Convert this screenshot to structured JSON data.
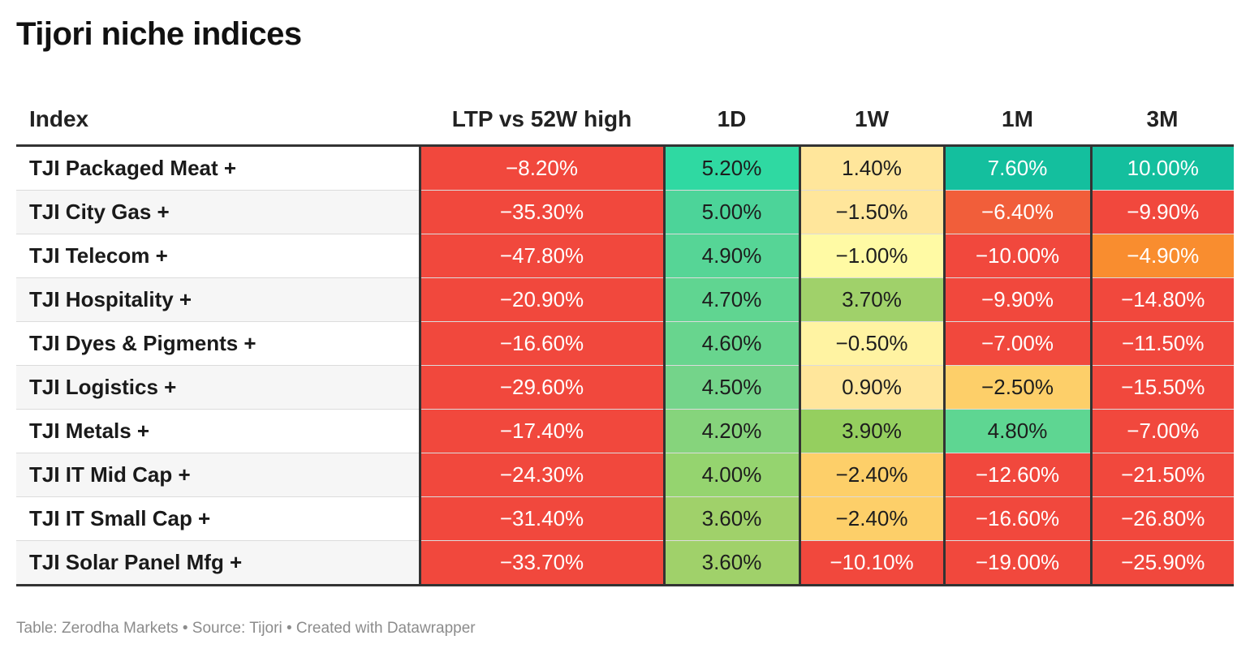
{
  "title": "Tijori niche indices",
  "footer": "Table: Zerodha Markets • Source: Tijori • Created with Datawrapper",
  "colors": {
    "deep_red": "#f1483d",
    "red_orange": "#f16a3b",
    "orange": "#f98d2f",
    "amber": "#fdcf69",
    "light_amber": "#ffe69b",
    "pale_yellow": "#fffaa4",
    "yellow_green": "#a0d16a",
    "lime_green": "#95cf5f",
    "light_green": "#74d48a",
    "green": "#56d596",
    "aqua_green": "#2fd9a2",
    "teal": "#14bf9e"
  },
  "chart_data": {
    "type": "table",
    "title": "Tijori niche indices",
    "columns": [
      "Index",
      "LTP vs 52W high",
      "1D",
      "1W",
      "1M",
      "3M"
    ],
    "rows": [
      {
        "name": "TJI Packaged Meat +",
        "values": [
          "−8.20%",
          "5.20%",
          "1.40%",
          "7.60%",
          "10.00%"
        ],
        "bg": [
          "#f1483d",
          "#2fd9a2",
          "#ffe69b",
          "#14bf9e",
          "#14bf9e"
        ],
        "fg": [
          "#ffffff",
          "#1d1d1d",
          "#1d1d1d",
          "#ffffff",
          "#ffffff"
        ]
      },
      {
        "name": "TJI City Gas +",
        "values": [
          "−35.30%",
          "5.00%",
          "−1.50%",
          "−6.40%",
          "−9.90%"
        ],
        "bg": [
          "#f1483d",
          "#4cd499",
          "#ffe69b",
          "#f15e3a",
          "#f1483d"
        ],
        "fg": [
          "#ffffff",
          "#1d1d1d",
          "#1d1d1d",
          "#ffffff",
          "#ffffff"
        ]
      },
      {
        "name": "TJI Telecom +",
        "values": [
          "−47.80%",
          "4.90%",
          "−1.00%",
          "−10.00%",
          "−4.90%"
        ],
        "bg": [
          "#f1483d",
          "#56d596",
          "#fffaa4",
          "#f1483d",
          "#f98d2f"
        ],
        "fg": [
          "#ffffff",
          "#1d1d1d",
          "#1d1d1d",
          "#ffffff",
          "#ffffff"
        ]
      },
      {
        "name": "TJI Hospitality +",
        "values": [
          "−20.90%",
          "4.70%",
          "3.70%",
          "−9.90%",
          "−14.80%"
        ],
        "bg": [
          "#f1483d",
          "#60d591",
          "#a0d16a",
          "#f1483d",
          "#f1483d"
        ],
        "fg": [
          "#ffffff",
          "#1d1d1d",
          "#1d1d1d",
          "#ffffff",
          "#ffffff"
        ]
      },
      {
        "name": "TJI Dyes & Pigments +",
        "values": [
          "−16.60%",
          "4.60%",
          "−0.50%",
          "−7.00%",
          "−11.50%"
        ],
        "bg": [
          "#f1483d",
          "#68d58e",
          "#fff3a2",
          "#f1483d",
          "#f1483d"
        ],
        "fg": [
          "#ffffff",
          "#1d1d1d",
          "#1d1d1d",
          "#ffffff",
          "#ffffff"
        ]
      },
      {
        "name": "TJI Logistics +",
        "values": [
          "−29.60%",
          "4.50%",
          "0.90%",
          "−2.50%",
          "−15.50%"
        ],
        "bg": [
          "#f1483d",
          "#74d48a",
          "#ffe69b",
          "#fdcf69",
          "#f1483d"
        ],
        "fg": [
          "#ffffff",
          "#1d1d1d",
          "#1d1d1d",
          "#1d1d1d",
          "#ffffff"
        ]
      },
      {
        "name": "TJI Metals +",
        "values": [
          "−17.40%",
          "4.20%",
          "3.90%",
          "4.80%",
          "−7.00%"
        ],
        "bg": [
          "#f1483d",
          "#86d47c",
          "#95cf5f",
          "#5ed692",
          "#f1483d"
        ],
        "fg": [
          "#ffffff",
          "#1d1d1d",
          "#1d1d1d",
          "#1d1d1d",
          "#ffffff"
        ]
      },
      {
        "name": "TJI IT Mid Cap +",
        "values": [
          "−24.30%",
          "4.00%",
          "−2.40%",
          "−12.60%",
          "−21.50%"
        ],
        "bg": [
          "#f1483d",
          "#95d46f",
          "#fdcf69",
          "#f1483d",
          "#f1483d"
        ],
        "fg": [
          "#ffffff",
          "#1d1d1d",
          "#1d1d1d",
          "#ffffff",
          "#ffffff"
        ]
      },
      {
        "name": "TJI IT Small Cap +",
        "values": [
          "−31.40%",
          "3.60%",
          "−2.40%",
          "−16.60%",
          "−26.80%"
        ],
        "bg": [
          "#f1483d",
          "#a0d16a",
          "#fdcf69",
          "#f1483d",
          "#f1483d"
        ],
        "fg": [
          "#ffffff",
          "#1d1d1d",
          "#1d1d1d",
          "#ffffff",
          "#ffffff"
        ]
      },
      {
        "name": "TJI Solar Panel Mfg +",
        "values": [
          "−33.70%",
          "3.60%",
          "−10.10%",
          "−19.00%",
          "−25.90%"
        ],
        "bg": [
          "#f1483d",
          "#a0d16a",
          "#f1483d",
          "#f1483d",
          "#f1483d"
        ],
        "fg": [
          "#ffffff",
          "#1d1d1d",
          "#ffffff",
          "#ffffff",
          "#ffffff"
        ]
      }
    ]
  }
}
